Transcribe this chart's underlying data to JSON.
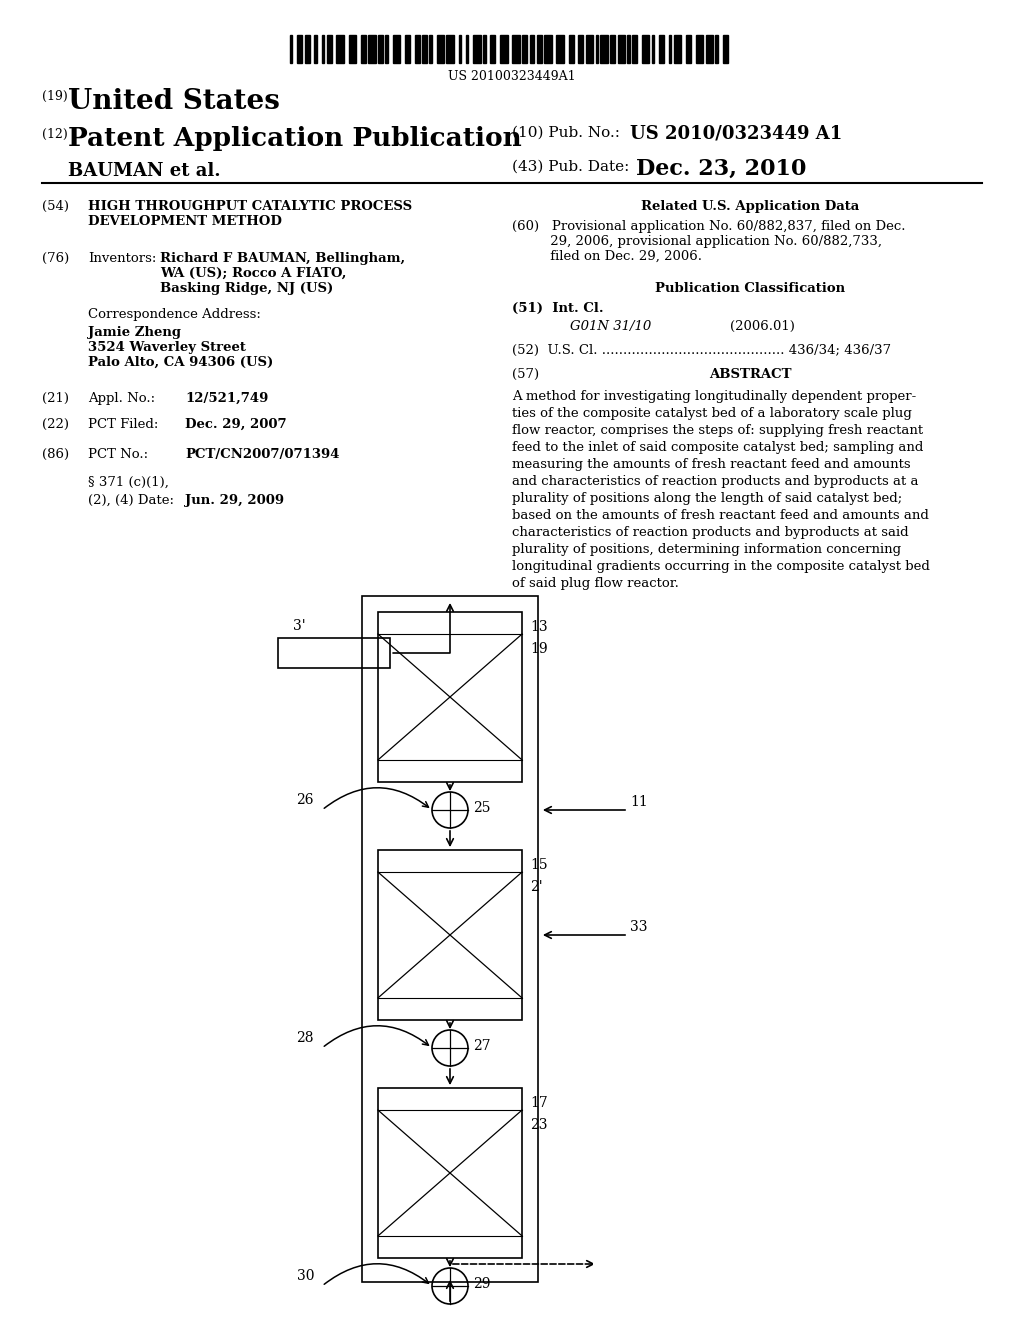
{
  "bg_color": "#ffffff",
  "barcode_text": "US 20100323449A1",
  "header": {
    "title_19": "(19)",
    "title_us": "United States",
    "title_12": "(12)",
    "title_pat": "Patent Application Publication",
    "title_bauman": "BAUMAN et al.",
    "pub_no_label": "(10) Pub. No.:",
    "pub_no_val": "US 2010/0323449 A1",
    "pub_date_label": "(43) Pub. Date:",
    "pub_date_val": "Dec. 23, 2010"
  },
  "left_col": {
    "tag54": "(54)",
    "text54": "HIGH THROUGHPUT CATALYTIC PROCESS\nDEVELOPMENT METHOD",
    "tag76": "(76)",
    "label76": "Inventors:",
    "text76": "Richard F BAUMAN, Bellingham,\nWA (US); Rocco A FIATO,\nBasking Ridge, NJ (US)",
    "corr_label": "Correspondence Address:",
    "corr_bold": "Jamie Zheng\n3524 Waverley Street\nPalo Alto, CA 94306 (US)",
    "tag21": "(21)",
    "label21": "Appl. No.:",
    "val21": "12/521,749",
    "tag22": "(22)",
    "label22": "PCT Filed:",
    "val22": "Dec. 29, 2007",
    "tag86": "(86)",
    "label86": "PCT No.:",
    "val86": "PCT/CN2007/071394",
    "label371a": "§ 371 (c)(1),",
    "label371b": "(2), (4) Date:",
    "val371": "Jun. 29, 2009"
  },
  "right_col": {
    "rel_app_title": "Related U.S. Application Data",
    "rel_app_body": "(60)   Provisional application No. 60/882,837, filed on Dec.\n         29, 2006, provisional application No. 60/882,733,\n         filed on Dec. 29, 2006.",
    "pub_class_title": "Publication Classification",
    "int_cl_label": "(51)  Int. Cl.",
    "int_cl_italic": "G01N 31/10",
    "int_cl_year": "(2006.01)",
    "us_cl_label": "(52)  U.S. Cl. ........................................... 436/34; 436/37",
    "abstract_label": "(57)",
    "abstract_title": "ABSTRACT",
    "abstract_body": "A method for investigating longitudinally dependent proper-\nties of the composite catalyst bed of a laboratory scale plug\nflow reactor, comprises the steps of: supplying fresh reactant\nfeed to the inlet of said composite catalyst bed; sampling and\nmeasuring the amounts of fresh reactant feed and amounts\nand characteristics of reaction products and byproducts at a\nplurality of positions along the length of said catalyst bed;\nbased on the amounts of fresh reactant feed and amounts and\ncharacteristics of reaction products and byproducts at said\nplurality of positions, determining information concerning\nlongitudinal gradients occurring in the composite catalyst bed\nof said plug flow reactor."
  },
  "diagram": {
    "feed_label": "3'",
    "r1_top_label": "13",
    "r1_mid_label": "19",
    "r2_top_label": "15",
    "r2_mid_label": "2'",
    "r3_top_label": "17",
    "r3_mid_label": "23",
    "c1_label": "25",
    "c1_side": "26",
    "c2_label": "27",
    "c2_side": "28",
    "c3_label": "29",
    "c3_side": "30",
    "arrow_right1": "11",
    "arrow_right2": "33"
  }
}
